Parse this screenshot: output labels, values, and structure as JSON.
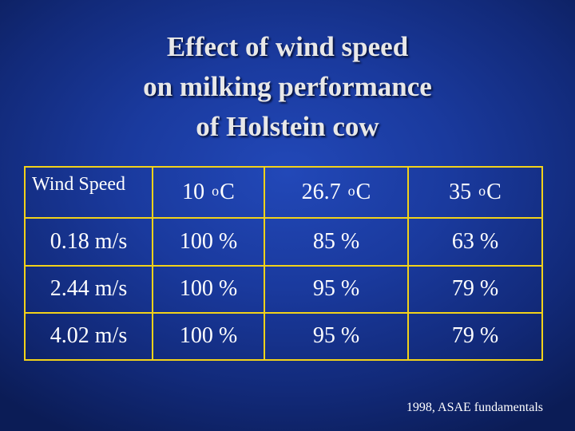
{
  "title": {
    "line1": "Effect of wind speed",
    "line2": "on milking performance",
    "line3": "of Holstein cow"
  },
  "table": {
    "header": {
      "first": "Wind  Speed",
      "temps": [
        {
          "value": "10",
          "unit_sup": "o",
          "unit": "C"
        },
        {
          "value": "26.7",
          "unit_sup": "o",
          "unit": "C"
        },
        {
          "value": "35",
          "unit_sup": "o",
          "unit": "C"
        }
      ]
    },
    "rows": [
      {
        "speed": "0.18 m/s",
        "cells": [
          "100 %",
          "85 %",
          "63 %"
        ]
      },
      {
        "speed": "2.44 m/s",
        "cells": [
          "100 %",
          "95 %",
          "79 %"
        ]
      },
      {
        "speed": "4.02 m/s",
        "cells": [
          "100 %",
          "95 %",
          "79 %"
        ]
      }
    ]
  },
  "source": "1998, ASAE fundamentals",
  "colors": {
    "background": "#1a3a9e",
    "grid_lines": "#f2d21a",
    "text": "#ffffff"
  }
}
